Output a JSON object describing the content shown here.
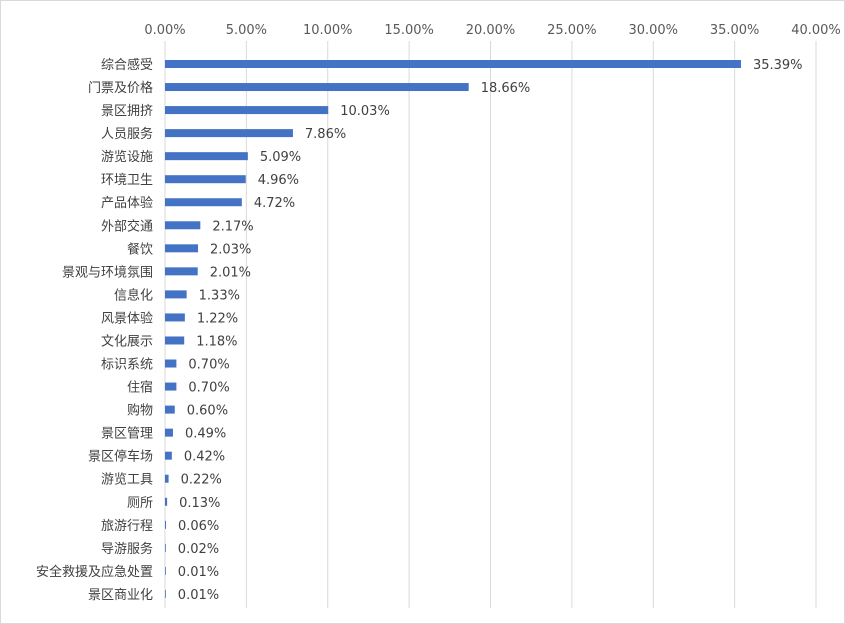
{
  "chart_data": {
    "type": "bar",
    "orientation": "horizontal",
    "title": "",
    "xlabel": "",
    "ylabel": "",
    "xlim": [
      0,
      40
    ],
    "x_ticks": [
      "0.00%",
      "5.00%",
      "10.00%",
      "15.00%",
      "20.00%",
      "25.00%",
      "30.00%",
      "35.00%",
      "40.00%"
    ],
    "x_axis_position": "top",
    "grid": "vertical",
    "legend": "none",
    "bar_color": "#4472c4",
    "categories": [
      "综合感受",
      "门票及价格",
      "景区拥挤",
      "人员服务",
      "游览设施",
      "环境卫生",
      "产品体验",
      "外部交通",
      "餐饮",
      "景观与环境氛围",
      "信息化",
      "风景体验",
      "文化展示",
      "标识系统",
      "住宿",
      "购物",
      "景区管理",
      "景区停车场",
      "游览工具",
      "厕所",
      "旅游行程",
      "导游服务",
      "安全救援及应急处置",
      "景区商业化"
    ],
    "values": [
      35.39,
      18.66,
      10.03,
      7.86,
      5.09,
      4.96,
      4.72,
      2.17,
      2.03,
      2.01,
      1.33,
      1.22,
      1.18,
      0.7,
      0.7,
      0.6,
      0.49,
      0.42,
      0.22,
      0.13,
      0.06,
      0.02,
      0.01,
      0.01
    ],
    "data_labels": [
      "35.39%",
      "18.66%",
      "10.03%",
      "7.86%",
      "5.09%",
      "4.96%",
      "4.72%",
      "2.17%",
      "2.03%",
      "2.01%",
      "1.33%",
      "1.22%",
      "1.18%",
      "0.70%",
      "0.70%",
      "0.60%",
      "0.49%",
      "0.42%",
      "0.22%",
      "0.13%",
      "0.06%",
      "0.02%",
      "0.01%",
      "0.01%"
    ]
  }
}
